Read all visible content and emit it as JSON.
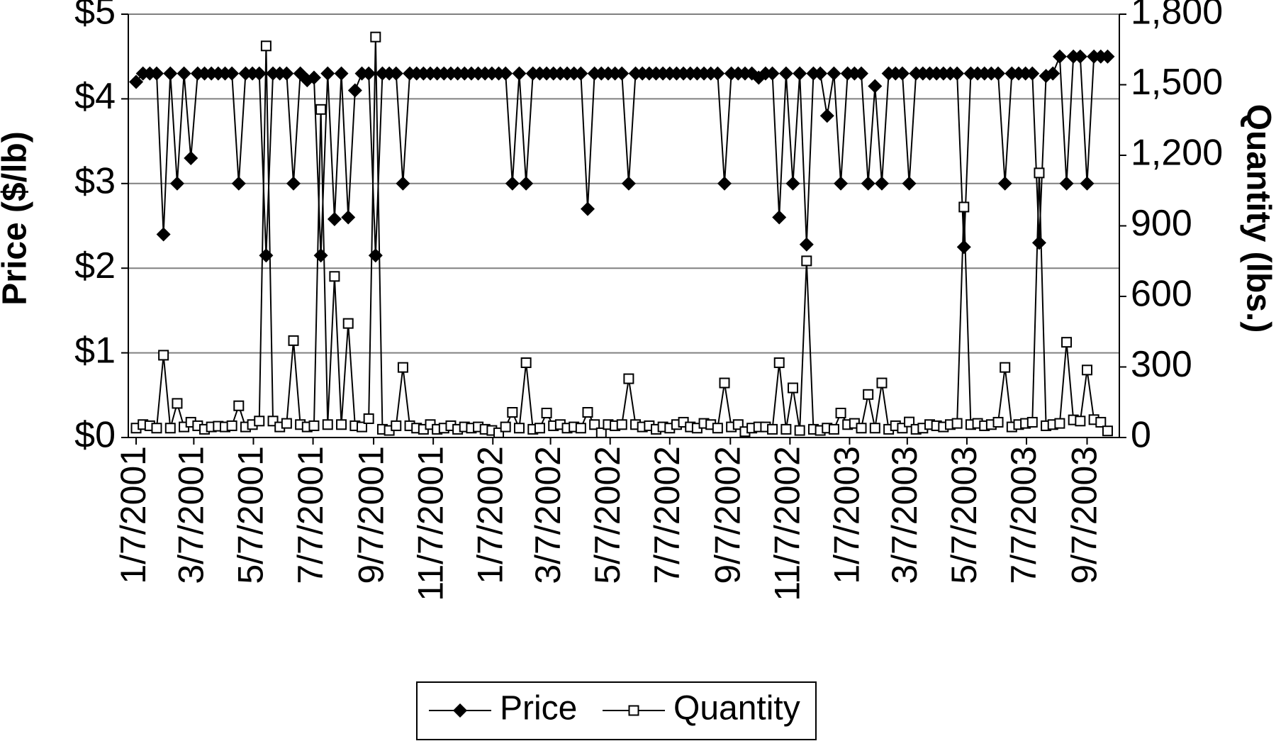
{
  "chart_data": {
    "type": "line",
    "y_label": "Price ($/lb)",
    "y2_label": "Quantity (lbs.)",
    "x": [
      "1/7/2001",
      "1/14/2001",
      "1/21/2001",
      "1/28/2001",
      "2/4/2001",
      "2/11/2001",
      "2/18/2001",
      "2/25/2001",
      "3/4/2001",
      "3/11/2001",
      "3/18/2001",
      "3/25/2001",
      "4/1/2001",
      "4/8/2001",
      "4/15/2001",
      "4/22/2001",
      "4/29/2001",
      "5/6/2001",
      "5/13/2001",
      "5/20/2001",
      "5/27/2001",
      "6/3/2001",
      "6/10/2001",
      "6/17/2001",
      "6/24/2001",
      "7/1/2001",
      "7/8/2001",
      "7/15/2001",
      "7/22/2001",
      "7/29/2001",
      "8/5/2001",
      "8/12/2001",
      "8/19/2001",
      "8/26/2001",
      "9/2/2001",
      "9/9/2001",
      "9/16/2001",
      "9/23/2001",
      "9/30/2001",
      "10/7/2001",
      "10/14/2001",
      "10/21/2001",
      "10/28/2001",
      "11/4/2001",
      "11/11/2001",
      "11/18/2001",
      "11/25/2001",
      "12/2/2001",
      "12/9/2001",
      "12/16/2001",
      "12/23/2001",
      "12/30/2001",
      "1/6/2002",
      "1/13/2002",
      "1/20/2002",
      "1/27/2002",
      "2/3/2002",
      "2/10/2002",
      "2/17/2002",
      "2/24/2002",
      "3/3/2002",
      "3/10/2002",
      "3/17/2002",
      "3/24/2002",
      "3/31/2002",
      "4/7/2002",
      "4/14/2002",
      "4/21/2002",
      "4/28/2002",
      "5/5/2002",
      "5/12/2002",
      "5/19/2002",
      "5/26/2002",
      "6/2/2002",
      "6/9/2002",
      "6/16/2002",
      "6/23/2002",
      "6/30/2002",
      "7/7/2002",
      "7/14/2002",
      "7/21/2002",
      "7/28/2002",
      "8/4/2002",
      "8/11/2002",
      "8/18/2002",
      "8/25/2002",
      "9/1/2002",
      "9/8/2002",
      "9/15/2002",
      "9/22/2002",
      "9/29/2002",
      "10/6/2002",
      "10/13/2002",
      "10/20/2002",
      "10/27/2002",
      "11/3/2002",
      "11/10/2002",
      "11/17/2002",
      "11/24/2002",
      "12/1/2002",
      "12/8/2002",
      "12/15/2002",
      "12/22/2002",
      "12/29/2002",
      "1/5/2003",
      "1/12/2003",
      "1/19/2003",
      "1/26/2003",
      "2/2/2003",
      "2/9/2003",
      "2/16/2003",
      "2/23/2003",
      "3/2/2003",
      "3/9/2003",
      "3/16/2003",
      "3/23/2003",
      "3/30/2003",
      "4/6/2003",
      "4/13/2003",
      "4/20/2003",
      "4/27/2003",
      "5/4/2003",
      "5/11/2003",
      "5/18/2003",
      "5/25/2003",
      "6/1/2003",
      "6/8/2003",
      "6/15/2003",
      "6/22/2003",
      "6/29/2003",
      "7/6/2003",
      "7/13/2003",
      "7/20/2003",
      "7/27/2003",
      "8/3/2003",
      "8/10/2003",
      "8/17/2003",
      "8/24/2003",
      "8/31/2003",
      "9/7/2003",
      "9/14/2003",
      "9/21/2003",
      "9/28/2003"
    ],
    "xlim": [
      "12/30/2000",
      "10/10/2003"
    ],
    "xticks": [
      "1/7/2001",
      "3/7/2001",
      "5/7/2001",
      "7/7/2001",
      "9/7/2001",
      "11/7/2001",
      "1/7/2002",
      "3/7/2002",
      "5/7/2002",
      "7/7/2002",
      "9/7/2002",
      "11/7/2002",
      "1/7/2003",
      "3/7/2003",
      "5/7/2003",
      "7/7/2003",
      "9/7/2003"
    ],
    "ylim": [
      0,
      5
    ],
    "yticks": [
      {
        "value": 0,
        "label": "$0"
      },
      {
        "value": 1,
        "label": "$1"
      },
      {
        "value": 2,
        "label": "$2"
      },
      {
        "value": 3,
        "label": "$3"
      },
      {
        "value": 4,
        "label": "$4"
      },
      {
        "value": 5,
        "label": "$5"
      }
    ],
    "y2lim": [
      0,
      1800
    ],
    "y2ticks": [
      0,
      300,
      600,
      900,
      {
        "value": 1200,
        "label": "1,200"
      },
      {
        "value": 1500,
        "label": "1,500"
      },
      {
        "value": 1800,
        "label": "1,800"
      }
    ],
    "grid": true,
    "legend": "bottom",
    "series": [
      {
        "name": "Price",
        "color": "#000000",
        "marker": "diamond",
        "values": [
          4.2,
          4.3,
          4.3,
          4.3,
          2.4,
          4.3,
          3.0,
          4.3,
          3.3,
          4.3,
          4.3,
          4.3,
          4.3,
          4.3,
          4.3,
          3.0,
          4.3,
          4.3,
          4.3,
          2.15,
          4.3,
          4.3,
          4.3,
          3.0,
          4.3,
          4.22,
          4.25,
          2.15,
          4.3,
          2.58,
          4.3,
          2.6,
          4.1,
          4.3,
          4.3,
          2.15,
          4.3,
          4.3,
          4.3,
          3.0,
          4.3,
          4.3,
          4.3,
          4.3,
          4.3,
          4.3,
          4.3,
          4.3,
          4.3,
          4.3,
          4.3,
          4.3,
          4.3,
          4.3,
          4.3,
          3.0,
          4.3,
          3.0,
          4.3,
          4.3,
          4.3,
          4.3,
          4.3,
          4.3,
          4.3,
          4.3,
          2.7,
          4.3,
          4.3,
          4.3,
          4.3,
          4.3,
          3.0,
          4.3,
          4.3,
          4.3,
          4.3,
          4.3,
          4.3,
          4.3,
          4.3,
          4.3,
          4.3,
          4.3,
          4.3,
          4.3,
          3.0,
          4.3,
          4.3,
          4.3,
          4.3,
          4.25,
          4.3,
          4.3,
          2.6,
          4.3,
          3.0,
          4.3,
          2.28,
          4.3,
          4.3,
          3.8,
          4.3,
          3.0,
          4.3,
          4.3,
          4.3,
          3.0,
          4.15,
          3.0,
          4.3,
          4.3,
          4.3,
          3.0,
          4.3,
          4.3,
          4.3,
          4.3,
          4.3,
          4.3,
          4.3,
          2.25,
          4.3,
          4.3,
          4.3,
          4.3,
          4.3,
          3.0,
          4.3,
          4.3,
          4.3,
          4.3,
          2.3,
          4.27,
          4.3,
          4.5,
          3.0,
          4.5,
          4.5,
          3.0,
          4.5,
          4.5,
          4.5
        ]
      },
      {
        "name": "Quantity",
        "color": "#000000",
        "marker": "square",
        "axis": "y2",
        "values": [
          40,
          55,
          50,
          40,
          350,
          40,
          145,
          45,
          65,
          50,
          35,
          45,
          48,
          45,
          50,
          135,
          45,
          55,
          70,
          1665,
          70,
          45,
          60,
          412,
          55,
          45,
          50,
          1395,
          55,
          685,
          55,
          485,
          50,
          45,
          80,
          1703,
          35,
          30,
          50,
          298,
          50,
          40,
          35,
          55,
          35,
          40,
          50,
          35,
          45,
          40,
          45,
          35,
          30,
          20,
          45,
          107,
          40,
          318,
          35,
          40,
          104,
          50,
          55,
          40,
          45,
          40,
          107,
          55,
          20,
          55,
          50,
          55,
          250,
          55,
          45,
          50,
          35,
          45,
          40,
          55,
          65,
          45,
          40,
          60,
          55,
          40,
          232,
          45,
          55,
          25,
          40,
          45,
          45,
          35,
          318,
          35,
          211,
          30,
          751,
          35,
          30,
          40,
          35,
          104,
          55,
          60,
          40,
          183,
          40,
          232,
          35,
          50,
          40,
          66,
          35,
          40,
          55,
          50,
          45,
          55,
          60,
          980,
          55,
          60,
          50,
          55,
          65,
          298,
          45,
          55,
          60,
          65,
          1125,
          50,
          55,
          60,
          405,
          75,
          70,
          287,
          76,
          65,
          28
        ]
      }
    ]
  }
}
